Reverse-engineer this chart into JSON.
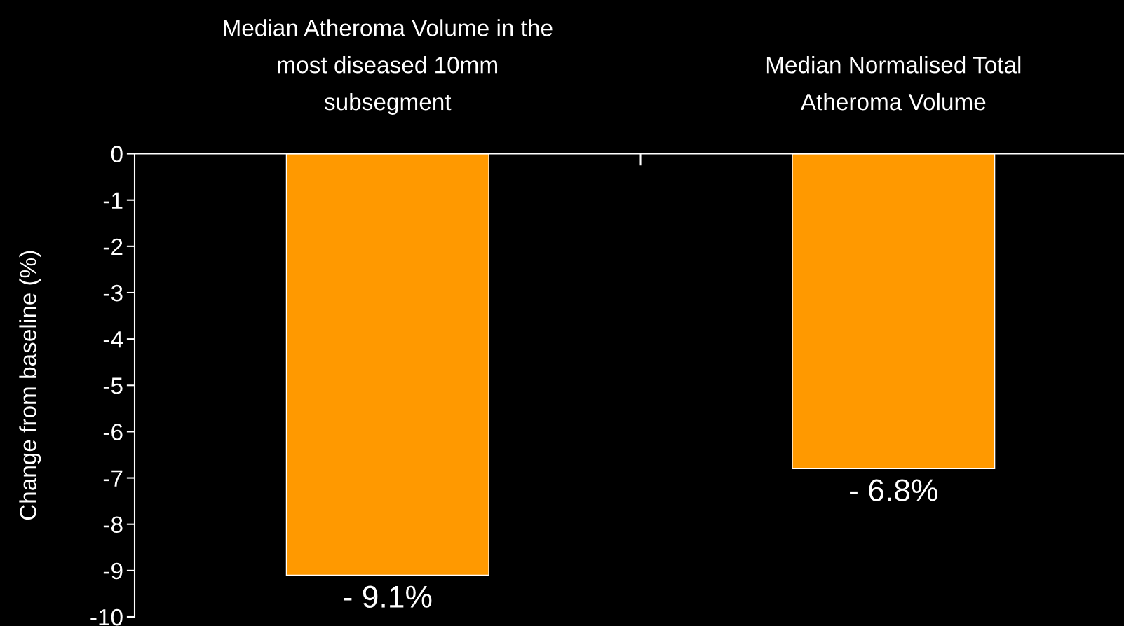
{
  "chart_data": {
    "type": "bar",
    "categories": [
      "Median Atheroma Volume in the\nmost diseased 10mm\nsubsegment",
      "Median Normalised Total\nAtheroma Volume"
    ],
    "ylabel": "Change from baseline (%)",
    "series": [
      {
        "color": "#ff9900",
        "values": [
          -9.1,
          -6.8
        ],
        "value_labels": [
          "- 9.1%",
          "- 6.8%"
        ]
      }
    ],
    "ylim": [
      -10,
      0
    ],
    "yticks": [
      -10,
      -9,
      -8,
      -7,
      -6,
      -5,
      -4,
      -3,
      -2,
      -1,
      0
    ]
  }
}
